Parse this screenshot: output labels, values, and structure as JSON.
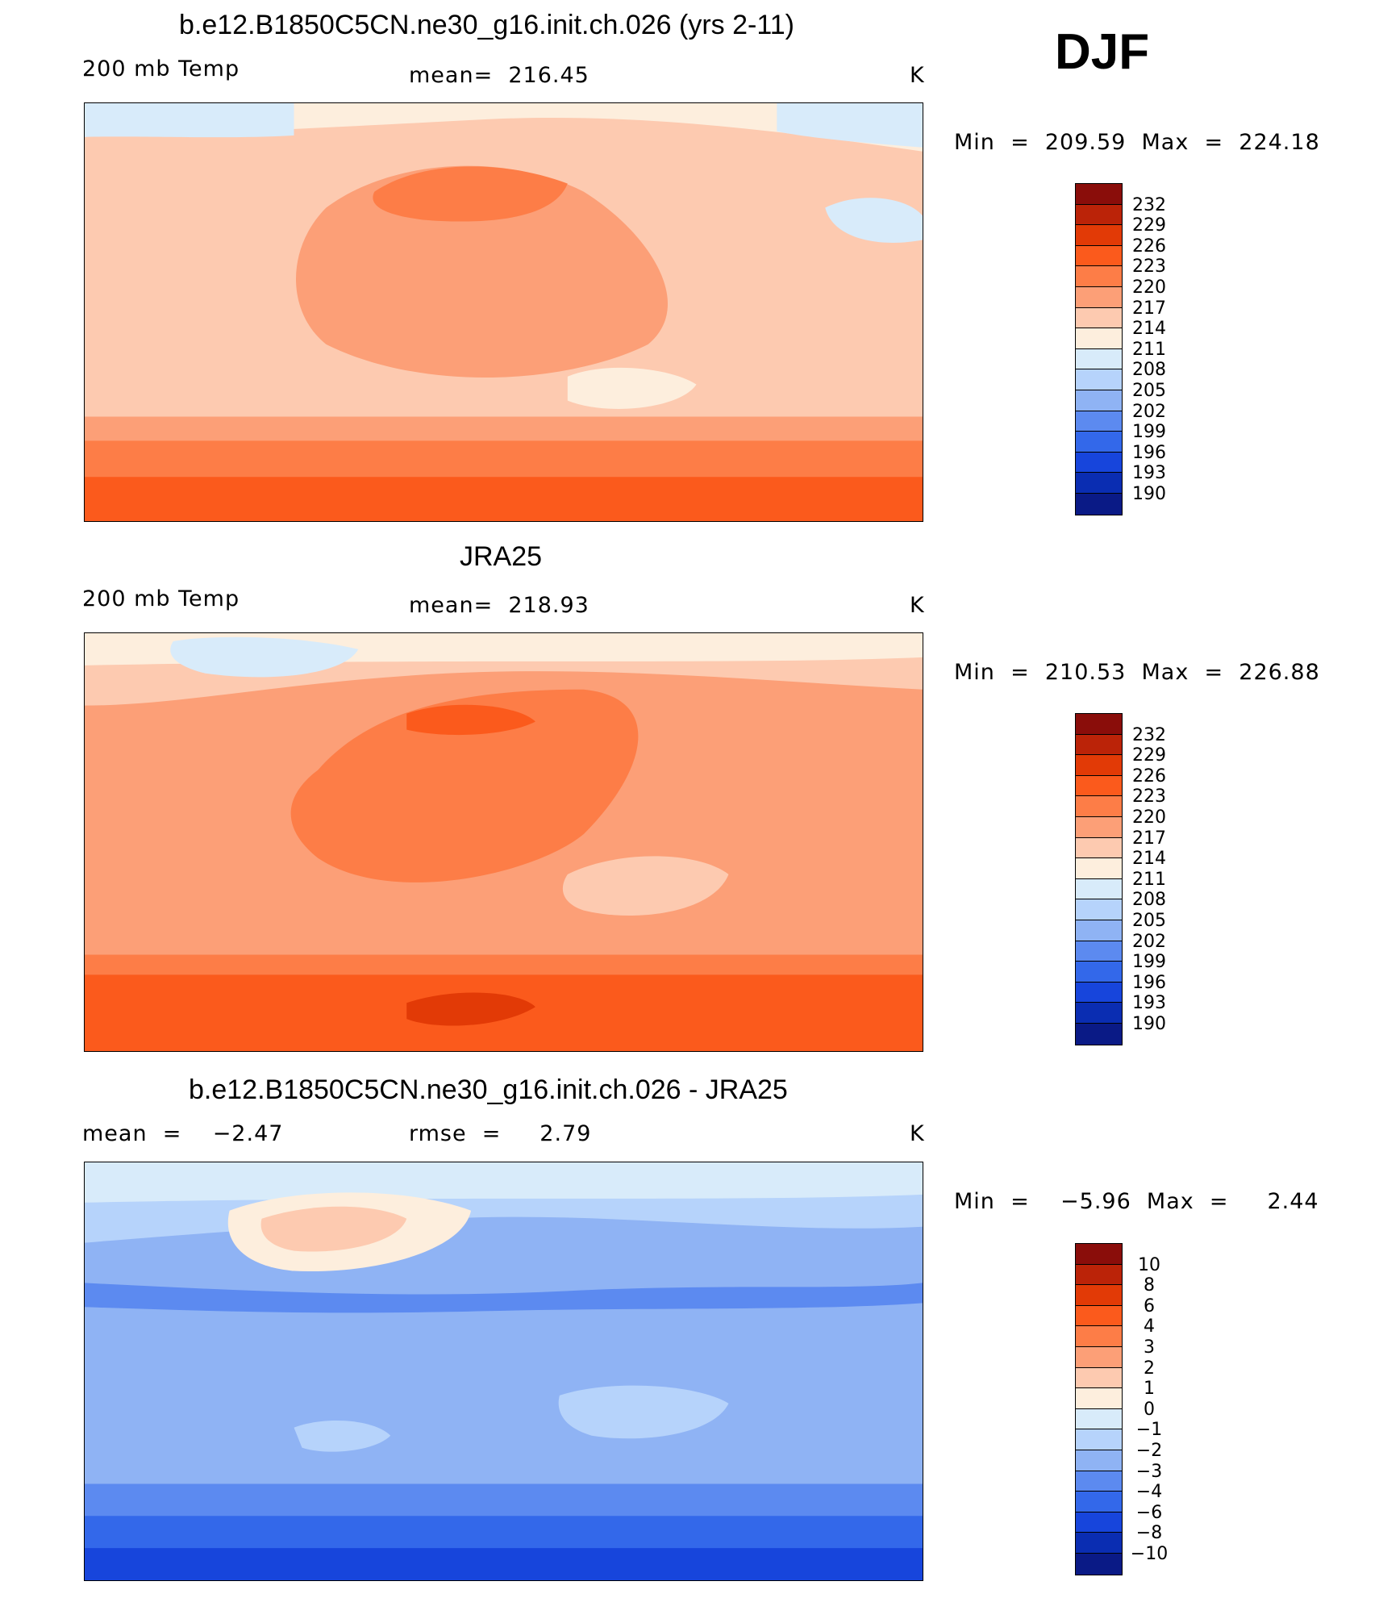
{
  "season": "DJF",
  "panels": [
    {
      "title": "b.e12.B1850C5CN.ne30_g16.init.ch.026 (yrs 2-11)",
      "left_label": "200 mb Temp",
      "center_label": "mean=  216.45",
      "units": "K",
      "minmax": "Min  =  209.59  Max  =  224.18",
      "colorbar_ticks": [
        "232",
        "229",
        "226",
        "223",
        "220",
        "217",
        "214",
        "211",
        "208",
        "205",
        "202",
        "199",
        "196",
        "193",
        "190"
      ],
      "base_color": "#f9b38f"
    },
    {
      "title": "JRA25",
      "left_label": "200 mb Temp",
      "center_label": "mean=  218.93",
      "units": "K",
      "minmax": "Min  =  210.53  Max  =  226.88",
      "colorbar_ticks": [
        "232",
        "229",
        "226",
        "223",
        "220",
        "217",
        "214",
        "211",
        "208",
        "205",
        "202",
        "199",
        "196",
        "193",
        "190"
      ],
      "base_color": "#f6a07a"
    },
    {
      "title": "b.e12.B1850C5CN.ne30_g16.init.ch.026 - JRA25",
      "left_label": "mean  =    −2.47",
      "center_label": "rmse  =     2.79",
      "units": "K",
      "minmax": "Min  =    −5.96  Max  =     2.44",
      "colorbar_ticks": [
        "10",
        "8",
        "6",
        "4",
        "3",
        "2",
        "1",
        "0",
        "−1",
        "−2",
        "−3",
        "−4",
        "−6",
        "−8",
        "−10"
      ],
      "base_color": "#8fb3f4"
    }
  ],
  "colorbar_colors": [
    "#8a0d0a",
    "#bb2308",
    "#e23a06",
    "#fb5a1c",
    "#fd7d47",
    "#fc9f77",
    "#fdcab0",
    "#fdeedd",
    "#d8ebfa",
    "#b6d3fb",
    "#8fb3f4",
    "#5c8af0",
    "#3368ea",
    "#1745dc",
    "#0a2db2",
    "#0a1a86"
  ],
  "chart_data": [
    {
      "type": "heatmap",
      "title": "b.e12.B1850C5CN.ne30_g16.init.ch.026 (yrs 2-11)",
      "subtitle": "DJF",
      "variable": "200 mb Temp",
      "units": "K",
      "mean": 216.45,
      "min": 209.59,
      "max": 224.18,
      "contour_levels": [
        190,
        193,
        196,
        199,
        202,
        205,
        208,
        211,
        214,
        217,
        220,
        223,
        226,
        229,
        232
      ]
    },
    {
      "type": "heatmap",
      "title": "JRA25",
      "variable": "200 mb Temp",
      "units": "K",
      "mean": 218.93,
      "min": 210.53,
      "max": 226.88,
      "contour_levels": [
        190,
        193,
        196,
        199,
        202,
        205,
        208,
        211,
        214,
        217,
        220,
        223,
        226,
        229,
        232
      ]
    },
    {
      "type": "heatmap",
      "title": "b.e12.B1850C5CN.ne30_g16.init.ch.026 - JRA25",
      "units": "K",
      "mean": -2.47,
      "rmse": 2.79,
      "min": -5.96,
      "max": 2.44,
      "contour_levels": [
        -10,
        -8,
        -6,
        -4,
        -3,
        -2,
        -1,
        0,
        1,
        2,
        3,
        4,
        6,
        8,
        10
      ]
    }
  ]
}
